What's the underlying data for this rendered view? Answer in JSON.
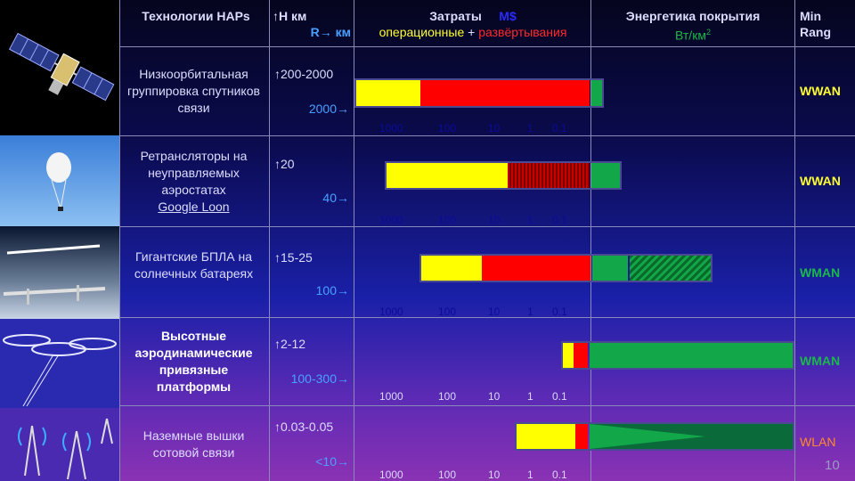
{
  "header": {
    "tech": "Технологии HAPs",
    "alt_label": "↑Н км",
    "range_label": "R→ км",
    "cost_title": "Затраты",
    "cost_unit": "M$",
    "cost_op": "операционные",
    "cost_plus": "+",
    "cost_dep": "развёртывания",
    "energy_title": "Энергетика покрытия",
    "energy_unit": "Вт/км",
    "energy_sup": "2",
    "rang1": "Min",
    "rang2": "Rang"
  },
  "scale_ticks": [
    "1000",
    "100",
    "10",
    "1",
    "0.1"
  ],
  "rows": [
    {
      "tech": "Низкоорбитальная группировка спутников связи",
      "bold": false,
      "link": "",
      "alt": "↑200-2000",
      "range": "2000→",
      "rang": "WWAN",
      "rang_color": "#ffff30"
    },
    {
      "tech": "Ретрансляторы на неуправляемых аэростатах",
      "bold": false,
      "link": "Google Loon",
      "alt": "↑20",
      "range": "40→",
      "rang": "WWAN",
      "rang_color": "#ffff30"
    },
    {
      "tech": "Гигантские БПЛА на солнечных батареях",
      "bold": false,
      "link": "",
      "alt": "↑15-25",
      "range": "100→",
      "rang": "WMAN",
      "rang_color": "#1ab84a"
    },
    {
      "tech": "Высотные аэродинамические привязные платформы",
      "bold": true,
      "link": "",
      "alt": "↑2-12",
      "range": "100-300→",
      "rang": "WMAN",
      "rang_color": "#1ab84a"
    },
    {
      "tech": "Наземные вышки сотовой связи",
      "bold": false,
      "link": "",
      "alt": "↑0.03-0.05",
      "range": "<10→",
      "rang": "WLAN",
      "rang_color": "#ff8a2a"
    }
  ],
  "page_number": "10",
  "colors": {
    "operational": "#ffff00",
    "deployment": "#ff0000",
    "energy": "#12a84a",
    "header_text": "#dcdcff"
  }
}
